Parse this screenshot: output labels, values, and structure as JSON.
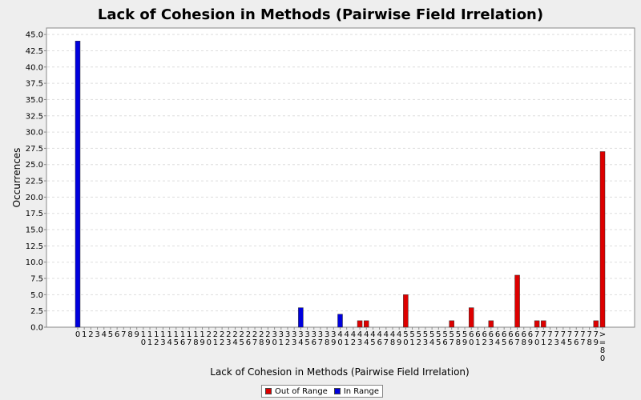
{
  "chart_data": {
    "type": "bar",
    "title": "Lack of Cohesion in Methods (Pairwise Field Irrelation)",
    "xlabel": "Lack of Cohesion in Methods (Pairwise Field Irrelation)",
    "ylabel": "Occurrences",
    "ylim": [
      0,
      46
    ],
    "yticks": [
      0.0,
      2.5,
      5.0,
      7.5,
      10.0,
      12.5,
      15.0,
      17.5,
      20.0,
      22.5,
      25.0,
      27.5,
      30.0,
      32.5,
      35.0,
      37.5,
      40.0,
      42.5,
      45.0
    ],
    "grid": true,
    "legend_position": "bottom",
    "categories": [
      "0",
      "1",
      "2",
      "3",
      "4",
      "5",
      "6",
      "7",
      "8",
      "9",
      "10",
      "11",
      "12",
      "13",
      "14",
      "15",
      "16",
      "17",
      "18",
      "19",
      "20",
      "21",
      "22",
      "23",
      "24",
      "25",
      "26",
      "27",
      "28",
      "29",
      "30",
      "31",
      "32",
      "33",
      "34",
      "35",
      "36",
      "37",
      "38",
      "39",
      "40",
      "41",
      "42",
      "43",
      "44",
      "45",
      "46",
      "47",
      "48",
      "49",
      "50",
      "51",
      "52",
      "53",
      "54",
      "55",
      "56",
      "57",
      "58",
      "59",
      "60",
      "61",
      "62",
      "63",
      "64",
      "65",
      "66",
      "67",
      "68",
      "69",
      "70",
      "71",
      "72",
      "73",
      "74",
      "75",
      "76",
      "77",
      "78",
      "79",
      ">=80"
    ],
    "series": [
      {
        "name": "Out of Range",
        "color": "#dd0000",
        "points": [
          {
            "category": "43",
            "value": 1
          },
          {
            "category": "44",
            "value": 1
          },
          {
            "category": "50",
            "value": 5
          },
          {
            "category": "57",
            "value": 1
          },
          {
            "category": "60",
            "value": 3
          },
          {
            "category": "63",
            "value": 1
          },
          {
            "category": "67",
            "value": 8
          },
          {
            "category": "70",
            "value": 1
          },
          {
            "category": "71",
            "value": 1
          },
          {
            "category": "79",
            "value": 1
          },
          {
            "category": ">=80",
            "value": 27
          }
        ]
      },
      {
        "name": "In Range",
        "color": "#0000dd",
        "points": [
          {
            "category": "0",
            "value": 44
          },
          {
            "category": "34",
            "value": 3
          },
          {
            "category": "40",
            "value": 2
          }
        ]
      }
    ]
  }
}
